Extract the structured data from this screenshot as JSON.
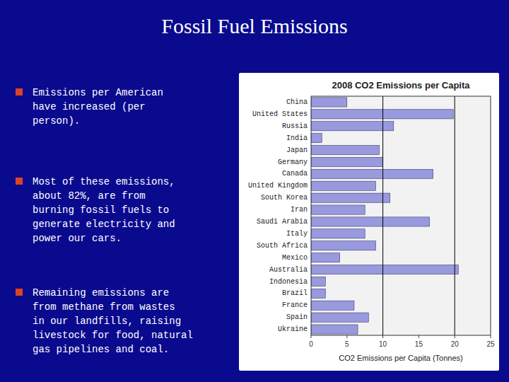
{
  "title": "Fossil Fuel Emissions",
  "bullet_points": [
    "Emissions per American\nhave increased (per\nperson).",
    "Most of these emissions,\nabout 82%, are from\nburning fossil fuels to\ngenerate electricity and\npower our cars.",
    "Remaining emissions are\nfrom methane from wastes\nin our landfills, raising\nlivestock for food, natural\ngas pipelines and coal."
  ],
  "chart_data": {
    "type": "bar",
    "orientation": "horizontal",
    "title": "2008 CO2 Emissions per Capita",
    "xlabel": "CO2 Emissions per Capita (Tonnes)",
    "categories": [
      "China",
      "United States",
      "Russia",
      "India",
      "Japan",
      "Germany",
      "Canada",
      "United Kingdom",
      "South Korea",
      "Iran",
      "Saudi Arabia",
      "Italy",
      "South Africa",
      "Mexico",
      "Australia",
      "Indonesia",
      "Brazil",
      "France",
      "Spain",
      "Ukraine"
    ],
    "values": [
      5.0,
      19.8,
      11.5,
      1.5,
      9.5,
      10.0,
      17.0,
      9.0,
      11.0,
      7.5,
      16.5,
      7.5,
      9.0,
      4.0,
      20.5,
      2.0,
      2.0,
      6.0,
      8.0,
      6.5
    ],
    "color": "#9999dd",
    "xlim": [
      0,
      25
    ],
    "xticks": [
      0,
      5,
      10,
      15,
      20,
      25
    ],
    "vlines": [
      10,
      20
    ]
  }
}
